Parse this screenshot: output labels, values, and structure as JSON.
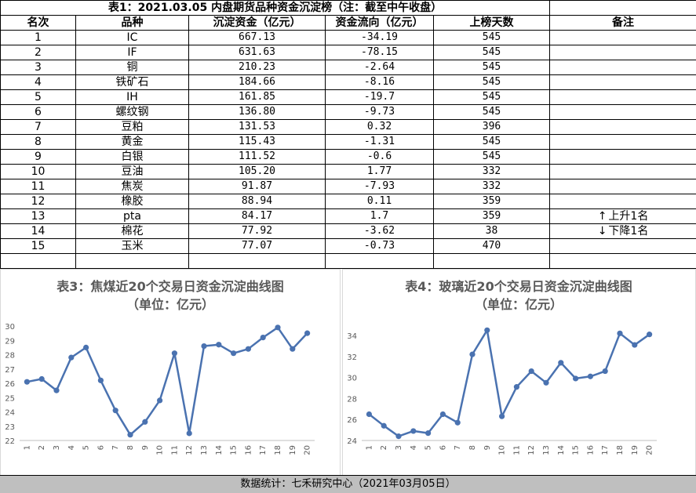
{
  "title": "表1：2021.03.05 内盘期货品种资金沉淀榜（注：截至中午收盘）",
  "headers": [
    "名次",
    "品种",
    "沉淀资金（亿元）",
    "资金流向（亿元）",
    "上榜天数",
    "备注"
  ],
  "rows": [
    {
      "rank": "1",
      "name": "IC",
      "fund": "667.13",
      "flow": "-34.19",
      "days": "545",
      "note": ""
    },
    {
      "rank": "2",
      "name": "IF",
      "fund": "631.63",
      "flow": "-78.15",
      "days": "545",
      "note": ""
    },
    {
      "rank": "3",
      "name": "铜",
      "fund": "210.23",
      "flow": "-2.64",
      "days": "545",
      "note": ""
    },
    {
      "rank": "4",
      "name": "铁矿石",
      "fund": "184.66",
      "flow": "-8.16",
      "days": "545",
      "note": ""
    },
    {
      "rank": "5",
      "name": "IH",
      "fund": "161.85",
      "flow": "-19.7",
      "days": "545",
      "note": ""
    },
    {
      "rank": "6",
      "name": "螺纹钢",
      "fund": "136.80",
      "flow": "-9.73",
      "days": "545",
      "note": ""
    },
    {
      "rank": "7",
      "name": "豆粕",
      "fund": "131.53",
      "flow": "0.32",
      "days": "396",
      "note": ""
    },
    {
      "rank": "8",
      "name": "黄金",
      "fund": "115.43",
      "flow": "-1.31",
      "days": "545",
      "note": ""
    },
    {
      "rank": "9",
      "name": "白银",
      "fund": "111.52",
      "flow": "-0.6",
      "days": "545",
      "note": ""
    },
    {
      "rank": "10",
      "name": "豆油",
      "fund": "105.20",
      "flow": "1.77",
      "days": "332",
      "note": ""
    },
    {
      "rank": "11",
      "name": "焦炭",
      "fund": "91.87",
      "flow": "-7.93",
      "days": "332",
      "note": ""
    },
    {
      "rank": "12",
      "name": "橡胶",
      "fund": "88.94",
      "flow": "0.11",
      "days": "359",
      "note": ""
    },
    {
      "rank": "13",
      "name": "pta",
      "fund": "84.17",
      "flow": "1.7",
      "days": "359",
      "note": "上升1名",
      "arrow": "↑"
    },
    {
      "rank": "14",
      "name": "棉花",
      "fund": "77.92",
      "flow": "-3.62",
      "days": "38",
      "note": "下降1名",
      "arrow": "↓"
    },
    {
      "rank": "15",
      "name": "玉米",
      "fund": "77.07",
      "flow": "-0.73",
      "days": "470",
      "note": ""
    }
  ],
  "footer": "数据统计：七禾研究中心（2021年03月05日）",
  "colors": {
    "line": "#4a72b0",
    "grid": "#d9d9d9",
    "footer_bg": "#bfbfbf"
  },
  "chart_data": [
    {
      "type": "line",
      "title": "表3：焦煤近20个交易日资金沉淀曲线图",
      "subtitle": "（单位：亿元）",
      "x": [
        "1",
        "2",
        "3",
        "4",
        "5",
        "6",
        "7",
        "8",
        "9",
        "10",
        "11",
        "12",
        "13",
        "14",
        "15",
        "16",
        "17",
        "18",
        "19",
        "20"
      ],
      "values": [
        26.1,
        26.3,
        25.5,
        27.8,
        28.5,
        26.2,
        24.1,
        22.4,
        23.3,
        24.8,
        28.1,
        22.5,
        28.6,
        28.7,
        28.1,
        28.4,
        29.2,
        29.9,
        28.4,
        29.5
      ],
      "ylim": [
        22,
        30
      ],
      "yticks": [
        "22",
        "23",
        "24",
        "25",
        "26",
        "27",
        "28",
        "29",
        "30"
      ],
      "grid": false
    },
    {
      "type": "line",
      "title": "表4：玻璃近20个交易日资金沉淀曲线图",
      "subtitle": "（单位：亿元）",
      "x": [
        "1",
        "2",
        "3",
        "4",
        "5",
        "6",
        "7",
        "8",
        "9",
        "10",
        "11",
        "12",
        "13",
        "14",
        "15",
        "16",
        "17",
        "18",
        "19",
        "20"
      ],
      "values": [
        26.5,
        25.4,
        24.4,
        24.9,
        24.7,
        26.5,
        25.7,
        32.2,
        34.5,
        26.3,
        29.1,
        30.6,
        29.5,
        31.4,
        29.9,
        30.1,
        30.6,
        34.2,
        33.1,
        34.1
      ],
      "ylim": [
        24,
        34
      ],
      "yticks": [
        "24",
        "26",
        "28",
        "30",
        "32",
        "34"
      ],
      "grid": false
    }
  ]
}
